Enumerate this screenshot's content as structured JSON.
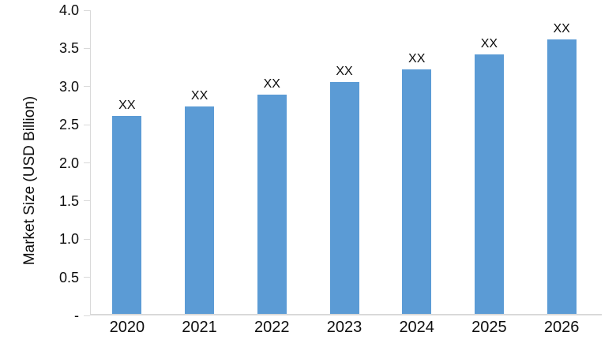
{
  "chart_data": {
    "type": "bar",
    "title": "",
    "xlabel": "",
    "ylabel": "Market Size (USD Billion)",
    "categories": [
      "2020",
      "2021",
      "2022",
      "2023",
      "2024",
      "2025",
      "2026"
    ],
    "values": [
      2.61,
      2.74,
      2.89,
      3.06,
      3.22,
      3.42,
      3.62
    ],
    "bar_labels": [
      "XX",
      "XX",
      "XX",
      "XX",
      "XX",
      "XX",
      "XX"
    ],
    "ylim": [
      0,
      4.0
    ],
    "y_tick_values": [
      4.0,
      3.5,
      3.0,
      2.5,
      2.0,
      1.5,
      1.0,
      0.5,
      0
    ],
    "y_tick_labels": [
      "4.0",
      "3.5",
      "3.0",
      "2.5",
      "2.0",
      "1.5",
      "1.0",
      "0.5",
      "-"
    ],
    "grid": false,
    "legend": "none",
    "bar_color": "#5B9BD5",
    "axis_color": "#D9D9D9",
    "text_color": "#0D0D0D"
  }
}
